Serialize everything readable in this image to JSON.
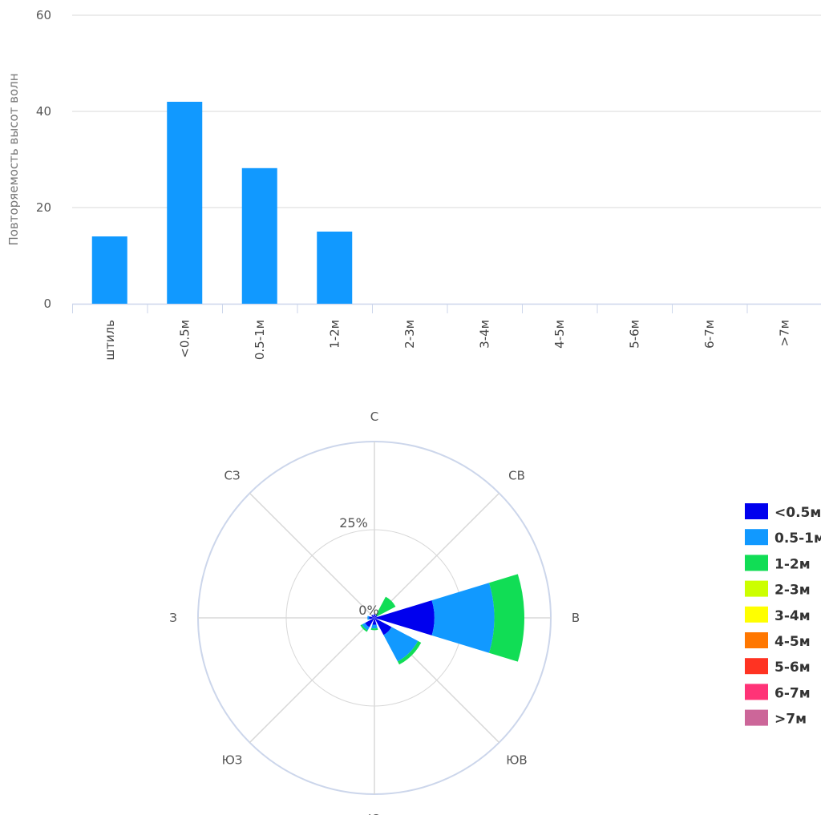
{
  "chart_data": [
    {
      "type": "bar",
      "ylabel": "Повторяемость высот волн",
      "ylim": [
        0,
        60
      ],
      "yticks": [
        "0",
        "20",
        "40",
        "60"
      ],
      "categories": [
        "штиль",
        "<0.5м",
        "0.5-1м",
        "1-2м",
        "2-3м",
        "3-4м",
        "4-5м",
        "5-6м",
        "6-7м",
        ">7м"
      ],
      "values": [
        14,
        42,
        28.2,
        15,
        0,
        0,
        0,
        0,
        0,
        0
      ],
      "color": "#1199ff",
      "grid": true
    },
    {
      "type": "wind-rose",
      "directions": [
        "С",
        "СВ",
        "В",
        "ЮВ",
        "Ю",
        "ЮЗ",
        "З",
        "СЗ"
      ],
      "ring_labels": [
        "0%",
        "25%"
      ],
      "rmax": 50,
      "legend_placement": "right",
      "series": [
        {
          "name": "<0.5м",
          "color": "#0000ee",
          "values": [
            1,
            1,
            17,
            5.5,
            2,
            3,
            1.5,
            1
          ]
        },
        {
          "name": "0.5-1м",
          "color": "#1199ff",
          "values": [
            0,
            0,
            17,
            8.5,
            1,
            1,
            0.5,
            0
          ]
        },
        {
          "name": "1-2м",
          "color": "#11dd55",
          "values": [
            0,
            5.8,
            8.5,
            1,
            0.5,
            0.5,
            0,
            0
          ]
        },
        {
          "name": "2-3м",
          "color": "#ccff00",
          "values": [
            0,
            0,
            0,
            0,
            0,
            0,
            0,
            0
          ]
        },
        {
          "name": "3-4м",
          "color": "#ffff00",
          "values": [
            0,
            0,
            0,
            0,
            0,
            0,
            0,
            0
          ]
        },
        {
          "name": "4-5м",
          "color": "#ff7700",
          "values": [
            0,
            0,
            0,
            0,
            0,
            0,
            0,
            0
          ]
        },
        {
          "name": "5-6м",
          "color": "#ff3322",
          "values": [
            0,
            0,
            0,
            0,
            0,
            0,
            0,
            0
          ]
        },
        {
          "name": "6-7м",
          "color": "#ff3377",
          "values": [
            0,
            0,
            0,
            0,
            0,
            0,
            0,
            0
          ]
        },
        {
          "name": ">7м",
          "color": "#cc6699",
          "values": [
            0,
            0,
            0,
            0,
            0,
            0,
            0,
            0
          ]
        }
      ]
    }
  ]
}
